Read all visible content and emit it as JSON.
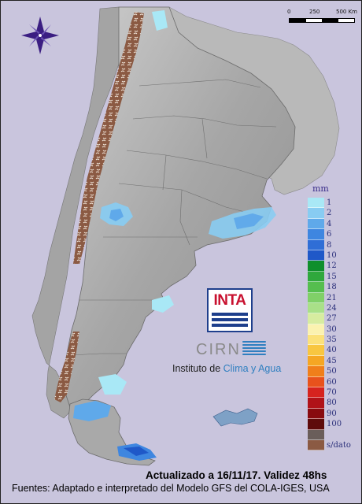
{
  "scale_bar": {
    "labels": [
      "0",
      "250",
      "500 Km"
    ]
  },
  "legend": {
    "unit": "mm",
    "items": [
      {
        "label": "1",
        "color": "#a9e8f6"
      },
      {
        "label": "2",
        "color": "#88ccf2"
      },
      {
        "label": "4",
        "color": "#5fa9ea"
      },
      {
        "label": "6",
        "color": "#3e86e0"
      },
      {
        "label": "8",
        "color": "#2f6ed6"
      },
      {
        "label": "10",
        "color": "#1f58c8"
      },
      {
        "label": "12",
        "color": "#0f8f2c"
      },
      {
        "label": "15",
        "color": "#2fa83c"
      },
      {
        "label": "18",
        "color": "#55be4e"
      },
      {
        "label": "21",
        "color": "#80d068"
      },
      {
        "label": "24",
        "color": "#a9e088"
      },
      {
        "label": "27",
        "color": "#d7eca0"
      },
      {
        "label": "30",
        "color": "#fbf2b0"
      },
      {
        "label": "35",
        "color": "#fbe17a"
      },
      {
        "label": "40",
        "color": "#f8c640"
      },
      {
        "label": "45",
        "color": "#f5a623"
      },
      {
        "label": "50",
        "color": "#f07f1a"
      },
      {
        "label": "60",
        "color": "#e8521c"
      },
      {
        "label": "70",
        "color": "#d6231e"
      },
      {
        "label": "80",
        "color": "#b01218"
      },
      {
        "label": "90",
        "color": "#880a0f"
      },
      {
        "label": "100",
        "color": "#5e0a0a"
      },
      {
        "label": "",
        "color": "#6a5e5a"
      },
      {
        "label": "s/dato",
        "color": "#8b5a43"
      }
    ]
  },
  "logos": {
    "inta": "INTA",
    "cirn": "CIRN",
    "instituto_prefix": "Instituto de ",
    "instituto_highlight": "Clima y Agua"
  },
  "footer": {
    "updated": "Actualizado a 16/11/17. Validez 48hs",
    "sources": "Fuentes: Adaptado e interpretado del Modelo GFS del COLA-IGES, USA"
  },
  "colors": {
    "background": "#c9c5dd",
    "land": "#a8a8a8",
    "no_data": "#8b5a43",
    "brand_blue": "#2f7fc0",
    "inta_red": "#c8102e"
  }
}
